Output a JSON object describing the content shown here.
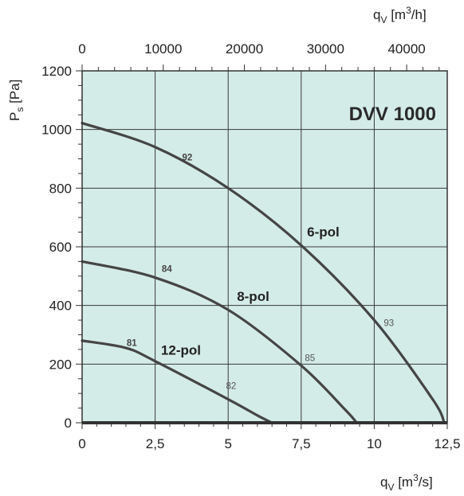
{
  "chart_data": {
    "type": "line",
    "title": "DVV 1000",
    "x_bottom": {
      "label_q": "q",
      "label_sub": "V",
      "label_unit_pre": " [m",
      "label_unit_sup": "3",
      "label_unit_post": "/s]",
      "lim": [
        0,
        12.5
      ],
      "ticks": [
        0,
        2.5,
        5,
        7.5,
        10,
        12.5
      ],
      "tick_labels": [
        "0",
        "2,5",
        "5",
        "7,5",
        "10",
        "12,5"
      ]
    },
    "x_top": {
      "label_q": "q",
      "label_sub": "V",
      "label_unit_pre": " [m",
      "label_unit_sup": "3",
      "label_unit_post": "/h]",
      "ticks": [
        0,
        10000,
        20000,
        30000,
        40000
      ],
      "tick_labels": [
        "0",
        "10000",
        "20000",
        "30000",
        "40000"
      ]
    },
    "y": {
      "label_p": "P",
      "label_sub": "s",
      "label_unit": " [Pa]",
      "lim": [
        0,
        1200
      ],
      "ticks": [
        0,
        200,
        400,
        600,
        800,
        1000,
        1200
      ],
      "tick_labels": [
        "0",
        "200",
        "400",
        "600",
        "800",
        "1000",
        "1200"
      ]
    },
    "grid": true,
    "background": "#d4ece7",
    "series": [
      {
        "name": "6-pol",
        "x": [
          0,
          2.5,
          5.0,
          7.5,
          10.0,
          12.0,
          12.4
        ],
        "y": [
          1022,
          940,
          800,
          605,
          350,
          80,
          0
        ]
      },
      {
        "name": "8-pol",
        "x": [
          0,
          2.5,
          5.0,
          7.5,
          9.0,
          9.4
        ],
        "y": [
          550,
          495,
          385,
          195,
          45,
          0
        ]
      },
      {
        "name": "12-pol",
        "x": [
          0,
          1.5,
          2.5,
          5.0,
          6.0,
          6.5
        ],
        "y": [
          280,
          255,
          210,
          80,
          25,
          0
        ]
      }
    ],
    "efficiency_labels": [
      {
        "text": "92",
        "x": 3.6,
        "y": 895,
        "weight": "bold"
      },
      {
        "text": "93",
        "x": 10.5,
        "y": 330,
        "weight": "normal"
      },
      {
        "text": "84",
        "x": 2.9,
        "y": 515,
        "weight": "bold"
      },
      {
        "text": "85",
        "x": 7.8,
        "y": 210,
        "weight": "normal"
      },
      {
        "text": "81",
        "x": 1.7,
        "y": 262,
        "weight": "bold"
      },
      {
        "text": "82",
        "x": 5.1,
        "y": 115,
        "weight": "normal"
      }
    ]
  }
}
